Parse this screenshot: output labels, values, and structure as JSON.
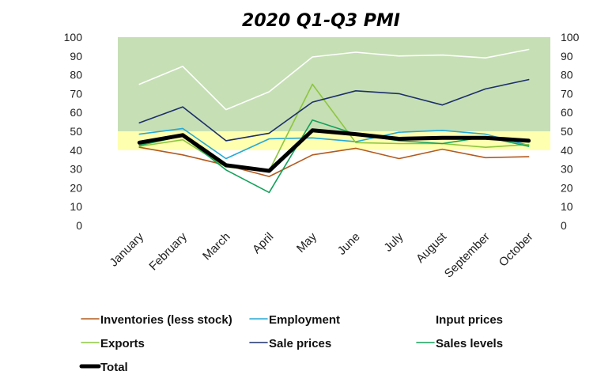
{
  "chart_data": {
    "type": "line",
    "title": "2020 Q1-Q3 PMI",
    "categories": [
      "January",
      "February",
      "March",
      "April",
      "May",
      "June",
      "July",
      "August",
      "September",
      "October"
    ],
    "ylim": [
      0,
      100
    ],
    "yticks": [
      0,
      10,
      20,
      30,
      40,
      50,
      60,
      70,
      80,
      90,
      100
    ],
    "secondary_yaxis": true,
    "bands": [
      {
        "from": 50,
        "to": 100,
        "color": "#c6dfb5"
      },
      {
        "from": 40,
        "to": 50,
        "color": "#ffffb0"
      }
    ],
    "series": [
      {
        "name": "Inventories (less stock)",
        "color": "#b35a1f",
        "width": 1.6,
        "values": [
          41.5,
          37.5,
          32,
          26,
          37.5,
          41,
          35.5,
          40.5,
          36,
          36.5
        ]
      },
      {
        "name": "Employment",
        "color": "#25a9d6",
        "width": 1.6,
        "values": [
          48.5,
          51.5,
          35.5,
          46,
          46.5,
          44.5,
          49.5,
          50.5,
          48.5,
          42.5
        ]
      },
      {
        "name": "Input prices",
        "color": "#ffffff",
        "width": 1.6,
        "values": [
          75,
          84.5,
          61.5,
          71,
          89.5,
          92,
          90,
          90.5,
          89,
          93.5
        ]
      },
      {
        "name": "Exports",
        "color": "#8dc63f",
        "width": 1.6,
        "values": [
          42,
          45.5,
          31,
          29,
          75,
          44,
          43.5,
          43.5,
          41.5,
          43
        ]
      },
      {
        "name": "Sale prices",
        "color": "#1c2f6b",
        "width": 1.6,
        "values": [
          54.5,
          63,
          45,
          49,
          65.5,
          71.5,
          70,
          64,
          72.5,
          77.5
        ]
      },
      {
        "name": "Sales levels",
        "color": "#14a05a",
        "width": 1.6,
        "values": [
          42.5,
          47.5,
          29.5,
          17.5,
          56,
          48.5,
          45,
          43.5,
          47,
          42
        ]
      },
      {
        "name": "Total",
        "color": "#000000",
        "width": 5,
        "values": [
          44,
          48,
          32,
          29,
          50.5,
          48.5,
          46,
          46.5,
          46.5,
          45
        ]
      }
    ],
    "legend_position": "bottom"
  }
}
